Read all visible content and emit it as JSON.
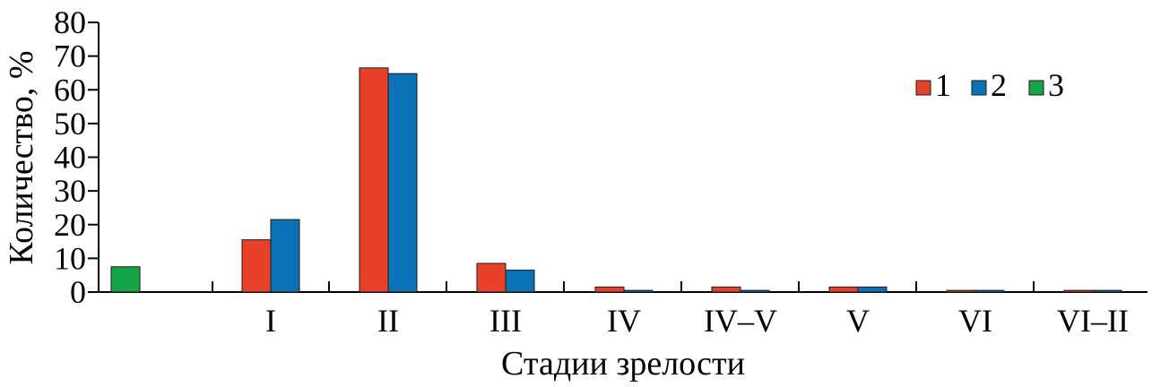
{
  "chart_data": {
    "type": "bar",
    "title": "",
    "xlabel": "Стадии зрелости",
    "ylabel": "Количество, %",
    "ylim": [
      0,
      80
    ],
    "yticks": [
      0,
      10,
      20,
      30,
      40,
      50,
      60,
      70,
      80
    ],
    "categories": [
      "",
      "I",
      "II",
      "III",
      "IV",
      "IV–V",
      "V",
      "VI",
      "VI–II"
    ],
    "series": [
      {
        "name": "1",
        "color": "#e8412a",
        "values": [
          null,
          15.5,
          66.5,
          8.5,
          1.5,
          1.5,
          1.5,
          0.5,
          0.5
        ]
      },
      {
        "name": "2",
        "color": "#0a72b5",
        "values": [
          null,
          21.5,
          64.8,
          6.5,
          0.5,
          0.5,
          1.5,
          0.5,
          0.5
        ]
      },
      {
        "name": "3",
        "color": "#16a34a",
        "values": [
          7.5,
          null,
          null,
          null,
          null,
          null,
          null,
          null,
          null
        ]
      }
    ],
    "legend_position": "top-right",
    "grid": false
  }
}
